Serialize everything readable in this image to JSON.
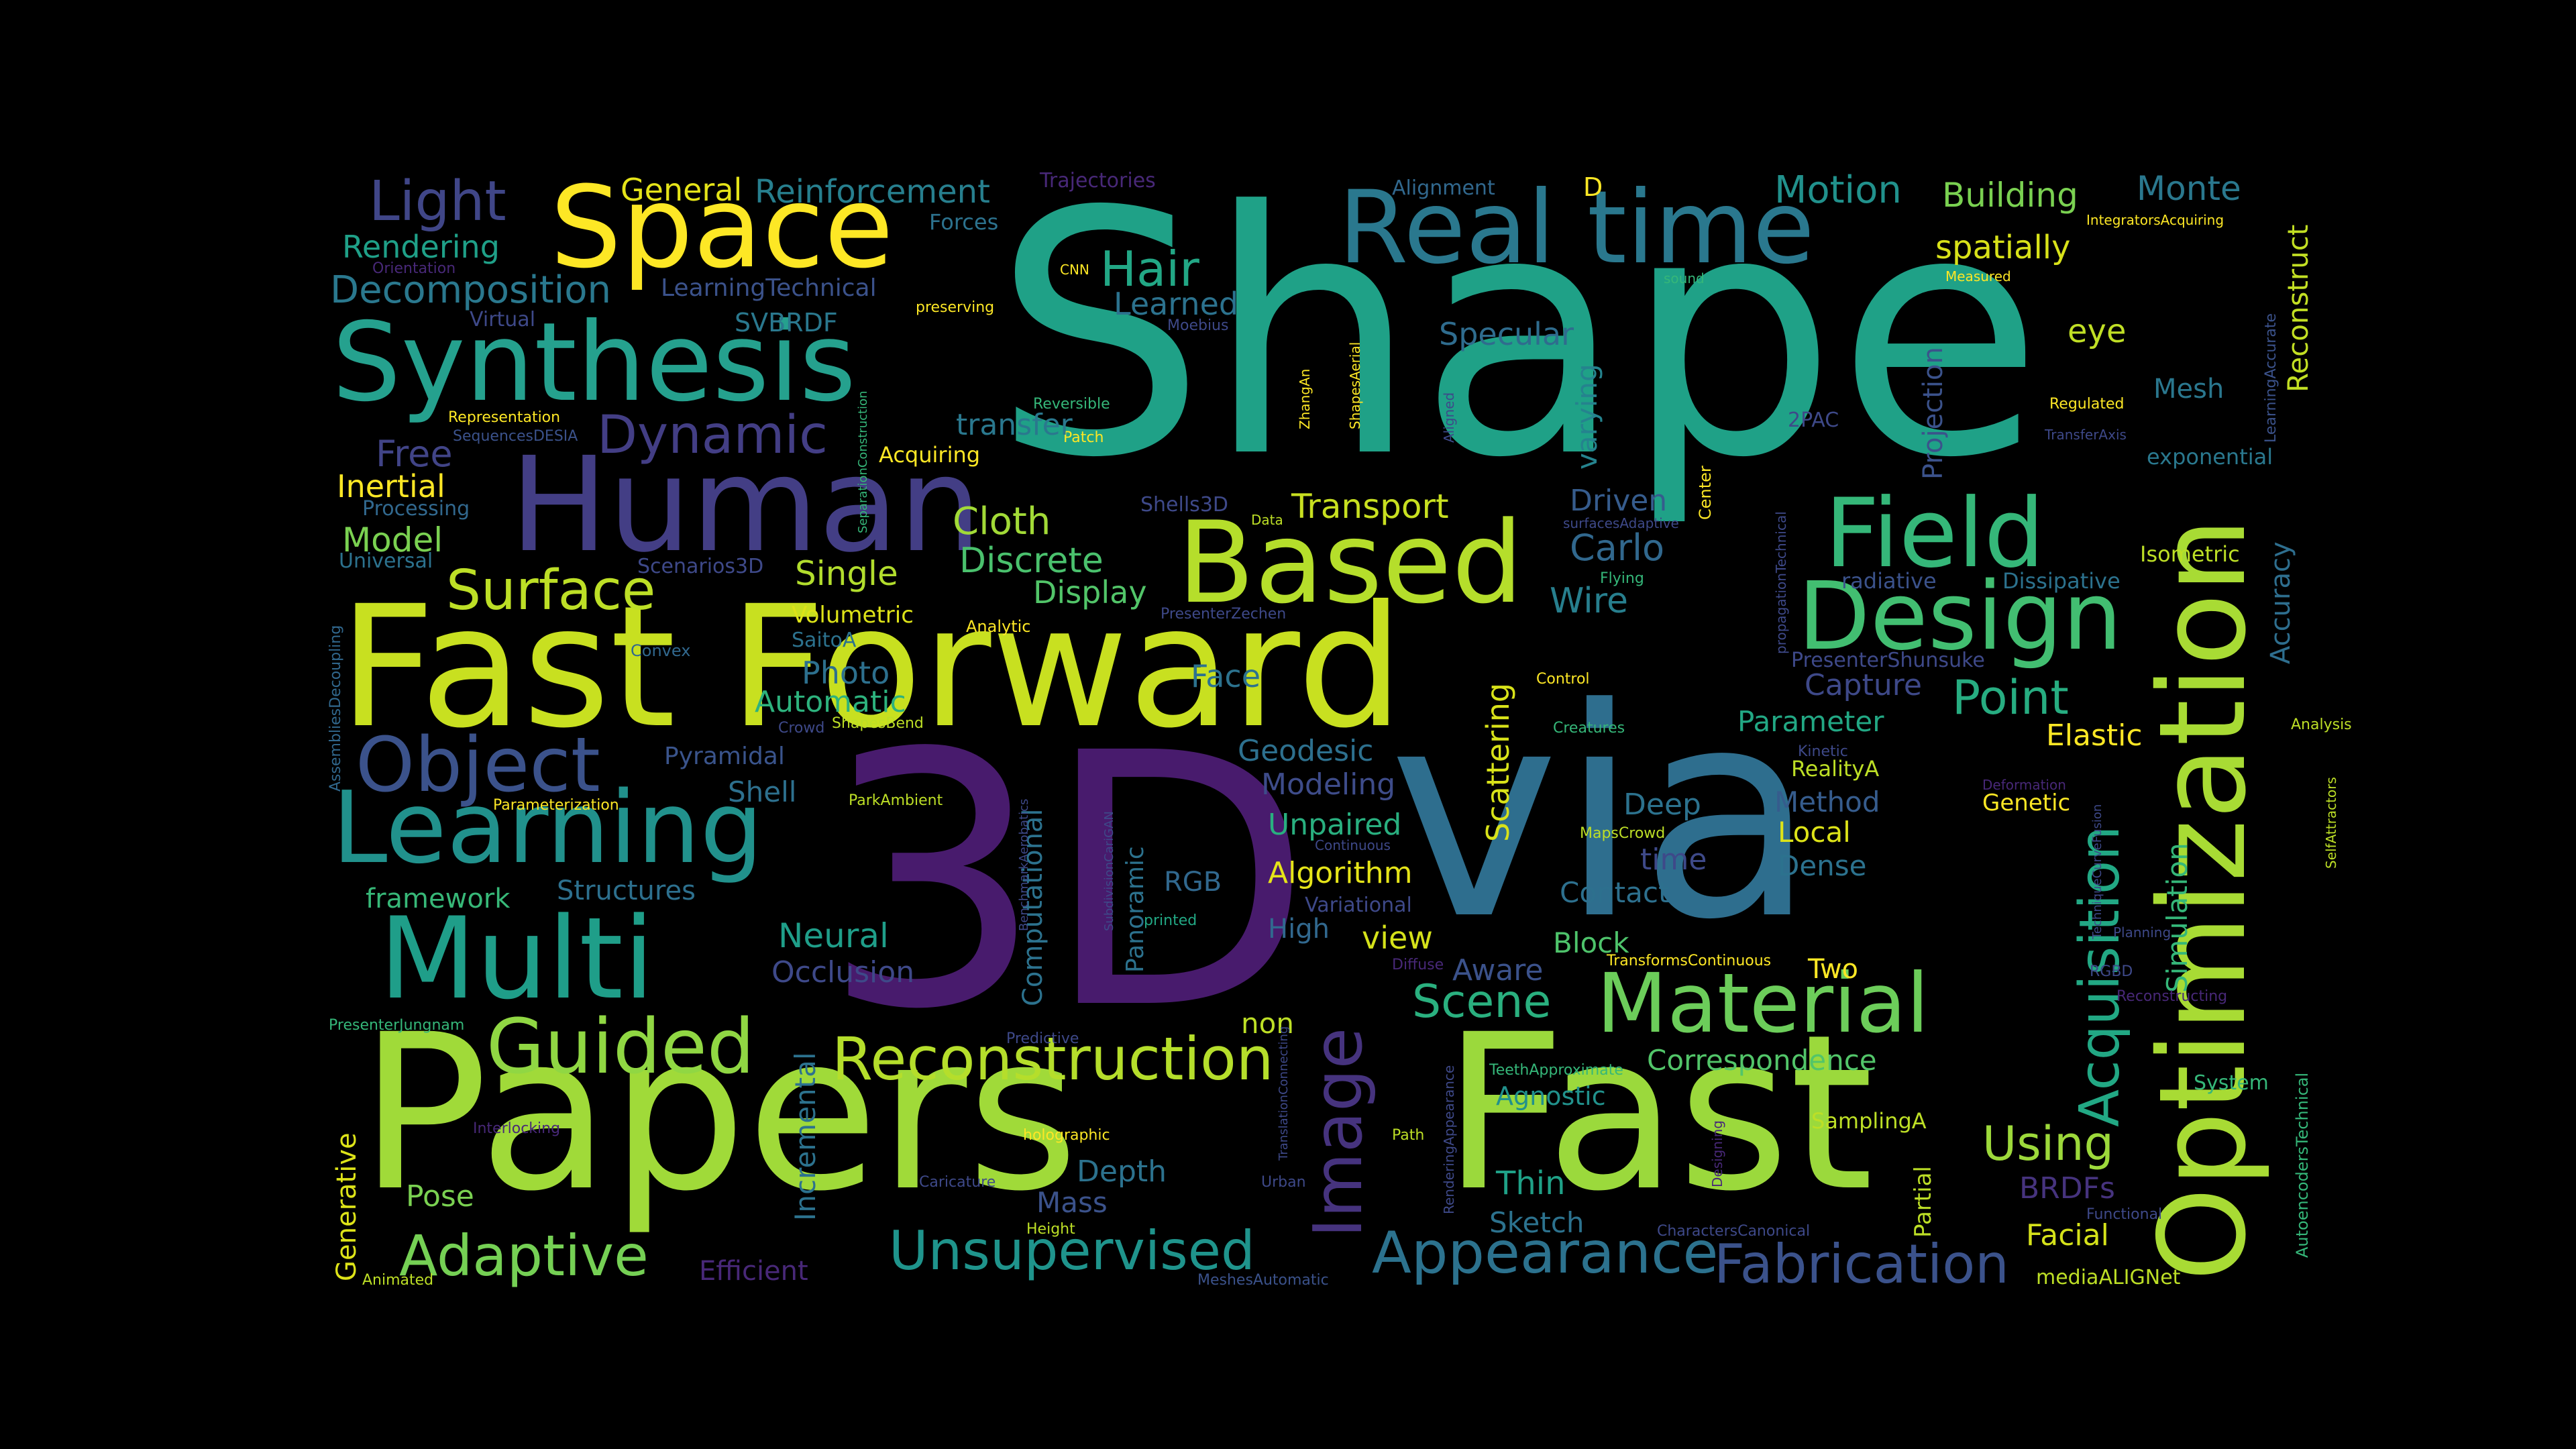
{
  "words": [
    {
      "text": "Shape",
      "color": "#1fa187",
      "icon": null
    },
    {
      "text": "3D",
      "color": "#481b6d"
    },
    {
      "text": "via",
      "color": "#2e6e8e"
    },
    {
      "text": "Papers",
      "color": "#a0da39"
    },
    {
      "text": "Fast",
      "color": "#9bd93c"
    },
    {
      "text": "Fast Forward",
      "color": "#c8e020"
    },
    {
      "text": "Optimization",
      "color": "#a8db34"
    },
    {
      "text": "Real time",
      "color": "#2a788e"
    },
    {
      "text": "Space",
      "color": "#fde725"
    },
    {
      "text": "Synthesis",
      "color": "#25a18e"
    },
    {
      "text": "Human",
      "color": "#433e85"
    },
    {
      "text": "Based",
      "color": "#b5de2b"
    },
    {
      "text": "Field",
      "color": "#35b779"
    },
    {
      "text": "Design",
      "color": "#42be71"
    },
    {
      "text": "Learning",
      "color": "#21918c"
    },
    {
      "text": "Multi",
      "color": "#1f9e89"
    },
    {
      "text": "Object",
      "color": "#3b528b"
    },
    {
      "text": "Material",
      "color": "#6ccd5a"
    },
    {
      "text": "Guided",
      "color": "#90d743"
    },
    {
      "text": "Reconstruction",
      "color": "#b5de2b"
    },
    {
      "text": "Image",
      "color": "#46337e"
    },
    {
      "text": "Acquisition",
      "color": "#22a884"
    },
    {
      "text": "Appearance",
      "color": "#2c728e"
    },
    {
      "text": "Fabrication",
      "color": "#3b528b"
    },
    {
      "text": "Unsupervised",
      "color": "#1f948c"
    },
    {
      "text": "Adaptive",
      "color": "#75d054"
    },
    {
      "text": "Surface",
      "color": "#bddf26"
    },
    {
      "text": "Dynamic",
      "color": "#433e85"
    },
    {
      "text": "Light",
      "color": "#404688"
    },
    {
      "text": "Decomposition",
      "color": "#2a788e"
    },
    {
      "text": "Motion",
      "color": "#21918c"
    },
    {
      "text": "Building",
      "color": "#7ad151"
    },
    {
      "text": "Monte",
      "color": "#2a788e"
    },
    {
      "text": "Reinforcement",
      "color": "#277f8e"
    },
    {
      "text": "General",
      "color": "#e5e419"
    },
    {
      "text": "Rendering",
      "color": "#1fa088"
    },
    {
      "text": "Hair",
      "color": "#22a785"
    },
    {
      "text": "Learned",
      "color": "#2c728e"
    },
    {
      "text": "Specular",
      "color": "#2f6c8e"
    },
    {
      "text": "spatially",
      "color": "#d8e219"
    },
    {
      "text": "Reconstruct",
      "color": "#c2df23"
    },
    {
      "text": "eye",
      "color": "#c0df25"
    },
    {
      "text": "Mesh",
      "color": "#2a778e"
    },
    {
      "text": "Cloth",
      "color": "#a2da37"
    },
    {
      "text": "Transport",
      "color": "#c8e020"
    },
    {
      "text": "Discrete",
      "color": "#4ac16d"
    },
    {
      "text": "Model",
      "color": "#7ad151"
    },
    {
      "text": "Inertial",
      "color": "#fde725"
    },
    {
      "text": "Free",
      "color": "#414487"
    },
    {
      "text": "Point",
      "color": "#27ad81"
    },
    {
      "text": "Carlo",
      "color": "#31688e"
    },
    {
      "text": "Wire",
      "color": "#277f8e"
    },
    {
      "text": "Driven",
      "color": "#365c8d"
    },
    {
      "text": "Display",
      "color": "#52c569"
    },
    {
      "text": "Single",
      "color": "#b2dd2d"
    },
    {
      "text": "Photo",
      "color": "#2d708e"
    },
    {
      "text": "Automatic",
      "color": "#2db27d"
    },
    {
      "text": "Face",
      "color": "#2c728e"
    },
    {
      "text": "Volumetric",
      "color": "#dde318"
    },
    {
      "text": "Scattering",
      "color": "#d8e219"
    },
    {
      "text": "Geodesic",
      "color": "#2d708e"
    },
    {
      "text": "Modeling",
      "color": "#3e4c8a"
    },
    {
      "text": "Pyramidal",
      "color": "#3a548c"
    },
    {
      "text": "Shell",
      "color": "#2d708e"
    },
    {
      "text": "Parameter",
      "color": "#22a884"
    },
    {
      "text": "Elastic",
      "color": "#fde725"
    },
    {
      "text": "Capture",
      "color": "#3e4989"
    },
    {
      "text": "Method",
      "color": "#365c8d"
    },
    {
      "text": "Deep",
      "color": "#2c728e"
    },
    {
      "text": "Local",
      "color": "#dde318"
    },
    {
      "text": "Dense",
      "color": "#2c728e"
    },
    {
      "text": "Genetic",
      "color": "#fde725"
    },
    {
      "text": "Unpaired",
      "color": "#29af7f"
    },
    {
      "text": "Algorithm",
      "color": "#e5e419"
    },
    {
      "text": "Structures",
      "color": "#2d708e"
    },
    {
      "text": "framework",
      "color": "#37b878"
    },
    {
      "text": "Neural",
      "color": "#1f9e89"
    },
    {
      "text": "Occlusion",
      "color": "#3e4989"
    },
    {
      "text": "RGB",
      "color": "#31688e"
    },
    {
      "text": "High",
      "color": "#31688e"
    },
    {
      "text": "view",
      "color": "#d5e21a"
    },
    {
      "text": "Scene",
      "color": "#2ab07f"
    },
    {
      "text": "Aware",
      "color": "#3b528b"
    },
    {
      "text": "Block",
      "color": "#4ec36b"
    },
    {
      "text": "Contact",
      "color": "#2d708e"
    },
    {
      "text": "Two",
      "color": "#fde725"
    },
    {
      "text": "time",
      "color": "#3e4989"
    },
    {
      "text": "Correspondence",
      "color": "#52c569"
    },
    {
      "text": "non",
      "color": "#bddf26"
    },
    {
      "text": "Agnostic",
      "color": "#21918c"
    },
    {
      "text": "Thin",
      "color": "#1fa187"
    },
    {
      "text": "Sketch",
      "color": "#2c728e"
    },
    {
      "text": "Using",
      "color": "#9dd93b"
    },
    {
      "text": "BRDFs",
      "color": "#46337e"
    },
    {
      "text": "Facial",
      "color": "#d5e21a"
    },
    {
      "text": "Depth",
      "color": "#2c728e"
    },
    {
      "text": "Mass",
      "color": "#3b528b"
    },
    {
      "text": "Pose",
      "color": "#7ad151"
    },
    {
      "text": "Efficient",
      "color": "#482878"
    },
    {
      "text": "Simulation",
      "color": "#35b779"
    },
    {
      "text": "Accuracy",
      "color": "#2e6e8e"
    },
    {
      "text": "Projection",
      "color": "#3b528b"
    },
    {
      "text": "varying",
      "color": "#25838e"
    },
    {
      "text": "Computational",
      "color": "#2c728e"
    },
    {
      "text": "Panoramic",
      "color": "#2c728e"
    },
    {
      "text": "Incremental",
      "color": "#2c728e"
    },
    {
      "text": "Generative",
      "color": "#dde318"
    },
    {
      "text": "Partial",
      "color": "#bddf26"
    },
    {
      "text": "exponential",
      "color": "#2a788e"
    },
    {
      "text": "Isometric",
      "color": "#bddf26"
    },
    {
      "text": "radiative",
      "color": "#3b528b"
    },
    {
      "text": "Dissipative",
      "color": "#2c728e"
    },
    {
      "text": "RealityA",
      "color": "#bddf26"
    },
    {
      "text": "PresenterShunsuke",
      "color": "#3e4989"
    },
    {
      "text": "SVBRDF",
      "color": "#2a788e"
    },
    {
      "text": "LearningTechnical",
      "color": "#3b528b"
    },
    {
      "text": "Forces",
      "color": "#2c728e"
    },
    {
      "text": "Trajectories",
      "color": "#482878"
    },
    {
      "text": "Alignment",
      "color": "#31688e"
    },
    {
      "text": "D",
      "color": "#fde725"
    },
    {
      "text": "Virtual",
      "color": "#3e4989"
    },
    {
      "text": "Representation",
      "color": "#fde725"
    },
    {
      "text": "SequencesDESIA",
      "color": "#3b528b"
    },
    {
      "text": "Processing",
      "color": "#31688e"
    },
    {
      "text": "Universal",
      "color": "#2c728e"
    },
    {
      "text": "Scenarios3D",
      "color": "#3e4989"
    },
    {
      "text": "Convex",
      "color": "#31688e"
    },
    {
      "text": "SaitoA",
      "color": "#2c728e"
    },
    {
      "text": "Analytic",
      "color": "#fde725"
    },
    {
      "text": "Crowd",
      "color": "#3e4989"
    },
    {
      "text": "ShapesBend",
      "color": "#bddf26"
    },
    {
      "text": "ParkAmbient",
      "color": "#bddf26"
    },
    {
      "text": "Parameterization",
      "color": "#fde725"
    },
    {
      "text": "AssembliesDecoupling",
      "color": "#31688e"
    },
    {
      "text": "PresenterJungnam",
      "color": "#35b779"
    },
    {
      "text": "Interlocking",
      "color": "#482878"
    },
    {
      "text": "Animated",
      "color": "#bddf26"
    },
    {
      "text": "Height",
      "color": "#bddf26"
    },
    {
      "text": "Caricature",
      "color": "#3e4989"
    },
    {
      "text": "holographic",
      "color": "#fde725"
    },
    {
      "text": "Predictive",
      "color": "#3e4989"
    },
    {
      "text": "printed",
      "color": "#22a884"
    },
    {
      "text": "MeshesAutomatic",
      "color": "#3b528b"
    },
    {
      "text": "Urban",
      "color": "#3e4989"
    },
    {
      "text": "BenchmarkAerobatics",
      "color": "#3e4989"
    },
    {
      "text": "SubdivisionCariGAN",
      "color": "#3e4989"
    },
    {
      "text": "Variational",
      "color": "#3e4989"
    },
    {
      "text": "Continuous",
      "color": "#3e4989"
    },
    {
      "text": "Diffuse",
      "color": "#482878"
    },
    {
      "text": "MapsCrowd",
      "color": "#bddf26"
    },
    {
      "text": "TransformsContinuous",
      "color": "#fde725"
    },
    {
      "text": "TeethApproximate",
      "color": "#35b779"
    },
    {
      "text": "Path",
      "color": "#bddf26"
    },
    {
      "text": "RenderingAppearance",
      "color": "#3e4989"
    },
    {
      "text": "TranslationConnecting",
      "color": "#3e4989"
    },
    {
      "text": "Designing",
      "color": "#482878"
    },
    {
      "text": "CharactersCanonical",
      "color": "#3e4989"
    },
    {
      "text": "Functional",
      "color": "#3e4989"
    },
    {
      "text": "Planning",
      "color": "#3e4989"
    },
    {
      "text": "mediaALIGNet",
      "color": "#bddf26"
    },
    {
      "text": "System",
      "color": "#35b779"
    },
    {
      "text": "SamplingA",
      "color": "#bddf26"
    },
    {
      "text": "AutoencodersTechnical",
      "color": "#35b779"
    },
    {
      "text": "RGBD",
      "color": "#3e4989"
    },
    {
      "text": "Reconstructing",
      "color": "#482878"
    },
    {
      "text": "TechniqueCurveFusion",
      "color": "#3e4989"
    },
    {
      "text": "SelfAttractors",
      "color": "#bddf26"
    },
    {
      "text": "Analysis",
      "color": "#bddf26"
    },
    {
      "text": "Kinetic",
      "color": "#3e4989"
    },
    {
      "text": "Deformation",
      "color": "#482878"
    },
    {
      "text": "Creatures",
      "color": "#35b779"
    },
    {
      "text": "Control",
      "color": "#fde725"
    },
    {
      "text": "Flying",
      "color": "#35b779"
    },
    {
      "text": "surfacesAdaptive",
      "color": "#3e4989"
    },
    {
      "text": "propagationTechnical",
      "color": "#3e4989"
    },
    {
      "text": "Center",
      "color": "#fde725"
    },
    {
      "text": "PresenterZechen",
      "color": "#3e4989"
    },
    {
      "text": "Shells3D",
      "color": "#3e4989"
    },
    {
      "text": "Data",
      "color": "#bddf26"
    },
    {
      "text": "ZhangAn",
      "color": "#fde725"
    },
    {
      "text": "ShapesAerial",
      "color": "#fde725"
    },
    {
      "text": "Aligned",
      "color": "#3e4989"
    },
    {
      "text": "Moebius",
      "color": "#3e4989"
    },
    {
      "text": "CNN",
      "color": "#fde725"
    },
    {
      "text": "preserving",
      "color": "#fde725"
    },
    {
      "text": "Reversible",
      "color": "#35b779"
    },
    {
      "text": "Patch",
      "color": "#fde725"
    },
    {
      "text": "SeparationConstruction",
      "color": "#35b779"
    },
    {
      "text": "Acquiring",
      "color": "#fde725"
    },
    {
      "text": "transfer",
      "color": "#2a788e"
    },
    {
      "text": "Orientation",
      "color": "#482878"
    },
    {
      "text": "sound",
      "color": "#35b779"
    },
    {
      "text": "Measured",
      "color": "#fde725"
    },
    {
      "text": "IntegratorsAcquiring",
      "color": "#fde725"
    },
    {
      "text": "LearningAccurate",
      "color": "#3b528b"
    },
    {
      "text": "Regulated",
      "color": "#fde725"
    },
    {
      "text": "TransferAxis",
      "color": "#3e4989"
    },
    {
      "text": "2PAC",
      "color": "#3e4989"
    }
  ]
}
